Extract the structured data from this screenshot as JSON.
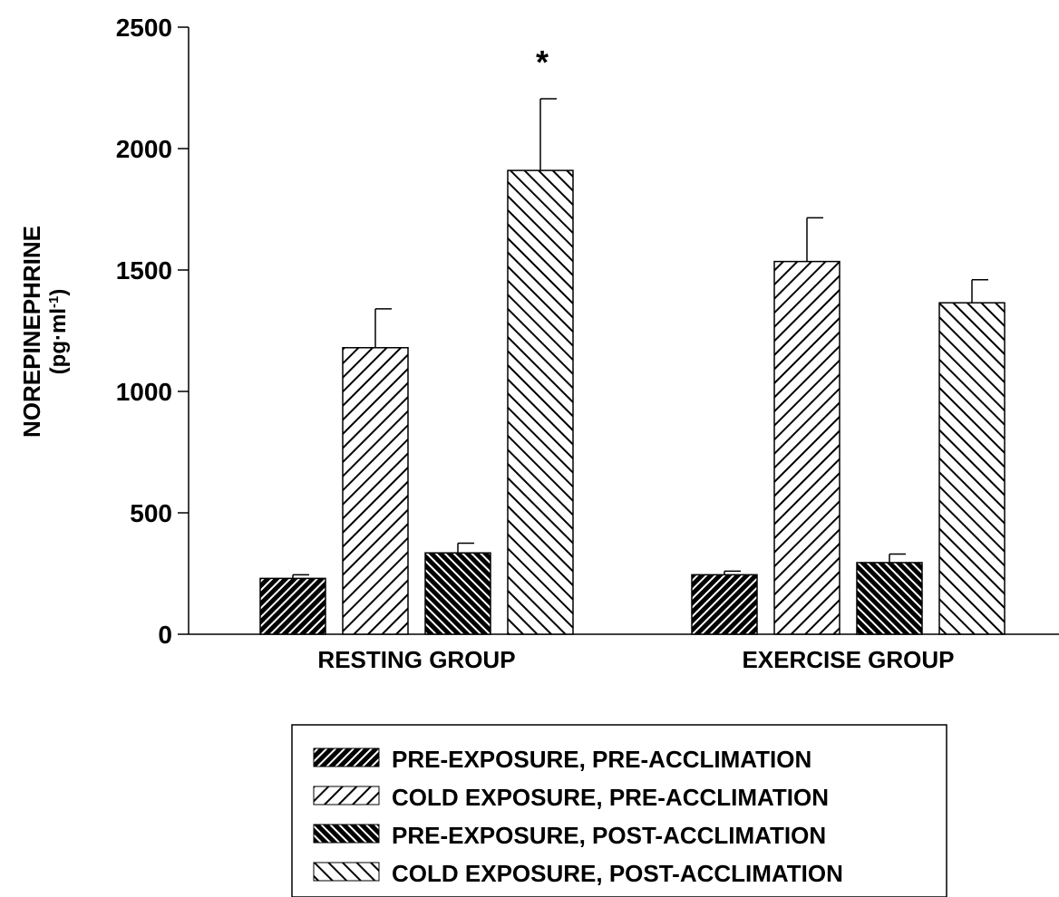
{
  "chart_data": {
    "type": "bar",
    "title": "",
    "xlabel": "",
    "ylabel": "NOREPINEPHRINE",
    "ylabel_unit_base": "(pg·ml",
    "ylabel_unit_exp": "-1",
    "ylabel_unit_close": ")",
    "ylim": [
      0,
      2500
    ],
    "yticks": [
      0,
      500,
      1000,
      1500,
      2000,
      2500
    ],
    "grid": false,
    "legend_position": "bottom",
    "categories": [
      "RESTING GROUP",
      "EXERCISE GROUP"
    ],
    "series": [
      {
        "name": "PRE-EXPOSURE, PRE-ACCLIMATION",
        "values": [
          230,
          245
        ],
        "errors": [
          15,
          15
        ],
        "pattern": "dense-forward"
      },
      {
        "name": "COLD EXPOSURE, PRE-ACCLIMATION",
        "values": [
          1180,
          1535
        ],
        "errors": [
          160,
          180
        ],
        "pattern": "sparse-forward"
      },
      {
        "name": "PRE-EXPOSURE, POST-ACCLIMATION",
        "values": [
          335,
          295
        ],
        "errors": [
          40,
          35
        ],
        "pattern": "dense-back"
      },
      {
        "name": "COLD EXPOSURE, POST-ACCLIMATION",
        "values": [
          1910,
          1365
        ],
        "errors": [
          295,
          95
        ],
        "pattern": "sparse-back"
      }
    ],
    "annotations": [
      {
        "text": "*",
        "category": 0,
        "series": 3
      }
    ]
  }
}
